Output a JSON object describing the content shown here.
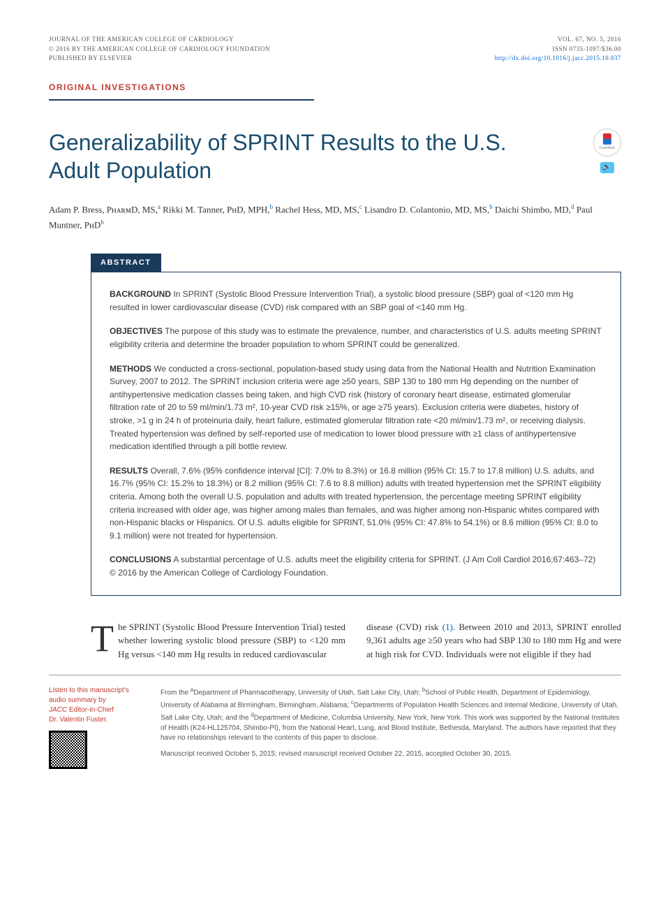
{
  "header": {
    "journal": "JOURNAL OF THE AMERICAN COLLEGE OF CARDIOLOGY",
    "copyright": "© 2016 BY THE AMERICAN COLLEGE OF CARDIOLOGY FOUNDATION",
    "publisher": "PUBLISHED BY ELSEVIER",
    "volume": "VOL. 67, NO. 5, 2016",
    "issn": "ISSN 0735-1097/$36.00",
    "doi": "http://dx.doi.org/10.1016/j.jacc.2015.10.037"
  },
  "section_label": "ORIGINAL INVESTIGATIONS",
  "title": "Generalizability of SPRINT Results to the U.S. Adult Population",
  "crossmark_label": "CrossMark",
  "authors_html": "Adam P. Bress, PʜᴀʀᴍD, MS,<sup>a</sup> Rikki M. Tanner, PʜD, MPH,<sup>b</sup> Rachel Hess, MD, MS,<sup>c</sup> Lisandro D. Colantonio, MD, MS,<sup>b</sup> Daichi Shimbo, MD,<sup>d</sup> Paul Muntner, PʜD<sup>b</sup>",
  "abstract_label": "ABSTRACT",
  "abstract": {
    "background": "In SPRINT (Systolic Blood Pressure Intervention Trial), a systolic blood pressure (SBP) goal of <120 mm Hg resulted in lower cardiovascular disease (CVD) risk compared with an SBP goal of <140 mm Hg.",
    "objectives": "The purpose of this study was to estimate the prevalence, number, and characteristics of U.S. adults meeting SPRINT eligibility criteria and determine the broader population to whom SPRINT could be generalized.",
    "methods": "We conducted a cross-sectional, population-based study using data from the National Health and Nutrition Examination Survey, 2007 to 2012. The SPRINT inclusion criteria were age ≥50 years, SBP 130 to 180 mm Hg depending on the number of antihypertensive medication classes being taken, and high CVD risk (history of coronary heart disease, estimated glomerular filtration rate of 20 to 59 ml/min/1.73 m², 10-year CVD risk ≥15%, or age ≥75 years). Exclusion criteria were diabetes, history of stroke, >1 g in 24 h of proteinuria daily, heart failure, estimated glomerular filtration rate <20 ml/min/1.73 m², or receiving dialysis. Treated hypertension was defined by self-reported use of medication to lower blood pressure with ≥1 class of antihypertensive medication identified through a pill bottle review.",
    "results": "Overall, 7.6% (95% confidence interval [CI]: 7.0% to 8.3%) or 16.8 million (95% CI: 15.7 to 17.8 million) U.S. adults, and 16.7% (95% CI: 15.2% to 18.3%) or 8.2 million (95% CI: 7.6 to 8.8 million) adults with treated hypertension met the SPRINT eligibility criteria. Among both the overall U.S. population and adults with treated hypertension, the percentage meeting SPRINT eligibility criteria increased with older age, was higher among males than females, and was higher among non-Hispanic whites compared with non-Hispanic blacks or Hispanics. Of U.S. adults eligible for SPRINT, 51.0% (95% CI: 47.8% to 54.1%) or 8.6 million (95% CI: 8.0 to 9.1 million) were not treated for hypertension.",
    "conclusions": "A substantial percentage of U.S. adults meet the eligibility criteria for SPRINT. (J Am Coll Cardiol 2016;67:463–72) © 2016 by the American College of Cardiology Foundation."
  },
  "body": {
    "col1": "he SPRINT (Systolic Blood Pressure Intervention Trial) tested whether lowering systolic blood pressure (SBP) to <120 mm Hg versus <140 mm Hg results in reduced cardiovascular",
    "col2": "disease (CVD) risk (1). Between 2010 and 2013, SPRINT enrolled 9,361 adults age ≥50 years who had SBP 130 to 180 mm Hg and were at high risk for CVD. Individuals were not eligible if they had"
  },
  "audio_note": {
    "line1": "Listen to this manuscript's",
    "line2": "audio summary by",
    "line3": "JACC",
    "line4": " Editor-in-Chief",
    "line5": "Dr. Valentin Fuster."
  },
  "affiliations": {
    "text": "From the <sup>a</sup>Department of Pharmacotherapy, University of Utah, Salt Lake City, Utah; <sup>b</sup>School of Public Health, Department of Epidemiology, University of Alabama at Birmingham, Birmingham, Alabama; <sup>c</sup>Departments of Population Health Sciences and Internal Medicine, University of Utah, Salt Lake City, Utah; and the <sup>d</sup>Department of Medicine, Columbia University, New York, New York. This work was supported by the National Institutes of Health (K24-HL125704, Shimbo-PI), from the National Heart, Lung, and Blood Institute, Bethesda, Maryland. The authors have reported that they have no relationships relevant to the contents of this paper to disclose.",
    "manuscript": "Manuscript received October 5, 2015; revised manuscript received October 22, 2015, accepted October 30, 2015."
  },
  "colors": {
    "accent_red": "#c0392b",
    "accent_blue": "#1a3a5c",
    "title_blue": "#1a4d6e",
    "link_blue": "#0066cc"
  }
}
